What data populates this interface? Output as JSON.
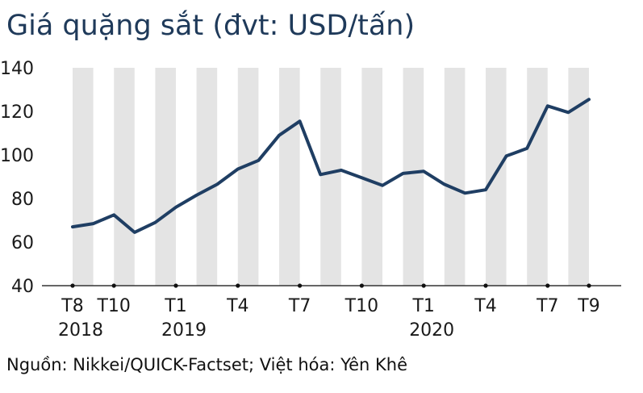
{
  "title": "Giá quặng sắt (đvt: USD/tấn)",
  "source": "Nguồn: Nikkei/QUICK-Factset; Việt hóa: Yên Khê",
  "colors": {
    "line": "#1f3e63",
    "band": "#e4e4e4",
    "axis": "#333333",
    "title": "#1f3a5a"
  },
  "chart_data": {
    "type": "line",
    "x": [
      "2018-08",
      "2018-09",
      "2018-10",
      "2018-11",
      "2018-12",
      "2019-01",
      "2019-02",
      "2019-03",
      "2019-04",
      "2019-05",
      "2019-06",
      "2019-07",
      "2019-08",
      "2019-09",
      "2019-10",
      "2019-11",
      "2019-12",
      "2020-01",
      "2020-02",
      "2020-03",
      "2020-04",
      "2020-05",
      "2020-06",
      "2020-07",
      "2020-08",
      "2020-09"
    ],
    "series": [
      {
        "values": [
          67,
          68.5,
          72.5,
          64.5,
          69,
          76,
          81.5,
          86.5,
          93.5,
          97.5,
          109,
          115.5,
          91,
          93,
          89.5,
          86,
          91.5,
          92.5,
          86.5,
          82.5,
          84,
          99.5,
          103,
          122.5,
          119.5,
          125.5
        ]
      }
    ],
    "ylim": [
      40,
      140
    ],
    "yticks": [
      40,
      60,
      80,
      100,
      120,
      140
    ],
    "xlabels": [
      {
        "index": 0,
        "month": "T8",
        "year": "2018"
      },
      {
        "index": 2,
        "month": "T10",
        "year": ""
      },
      {
        "index": 5,
        "month": "T1",
        "year": "2019"
      },
      {
        "index": 8,
        "month": "T4",
        "year": ""
      },
      {
        "index": 11,
        "month": "T7",
        "year": ""
      },
      {
        "index": 14,
        "month": "T10",
        "year": ""
      },
      {
        "index": 17,
        "month": "T1",
        "year": "2020"
      },
      {
        "index": 20,
        "month": "T4",
        "year": ""
      },
      {
        "index": 23,
        "month": "T7",
        "year": ""
      },
      {
        "index": 25,
        "month": "T9",
        "year": ""
      }
    ],
    "grid": false,
    "alternating_month_bands": true
  }
}
